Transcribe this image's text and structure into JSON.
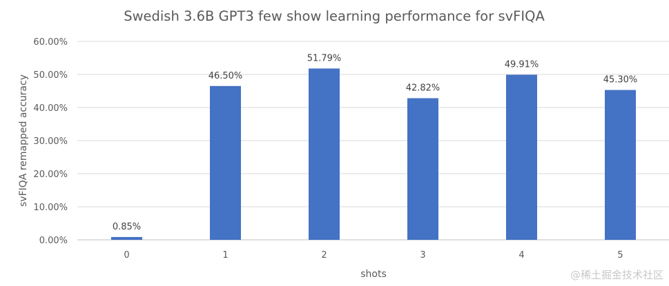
{
  "chart_data": {
    "type": "bar",
    "title": "Swedish 3.6B GPT3 few show learning performance for svFIQA",
    "xlabel": "shots",
    "ylabel": "svFIQA remapped accuracy",
    "categories": [
      "0",
      "1",
      "2",
      "3",
      "4",
      "5"
    ],
    "values": [
      0.85,
      46.5,
      51.79,
      42.82,
      49.91,
      45.3
    ],
    "data_labels": [
      "0.85%",
      "46.50%",
      "51.79%",
      "42.82%",
      "49.91%",
      "45.30%"
    ],
    "ylim": [
      0,
      60
    ],
    "y_ticks": [
      0,
      10,
      20,
      30,
      40,
      50,
      60
    ],
    "y_tick_labels": [
      "0.00%",
      "10.00%",
      "20.00%",
      "30.00%",
      "40.00%",
      "50.00%",
      "60.00%"
    ],
    "grid": true,
    "legend": "none",
    "bar_color": "#4472C4"
  },
  "watermark": "@稀土掘金技术社区"
}
